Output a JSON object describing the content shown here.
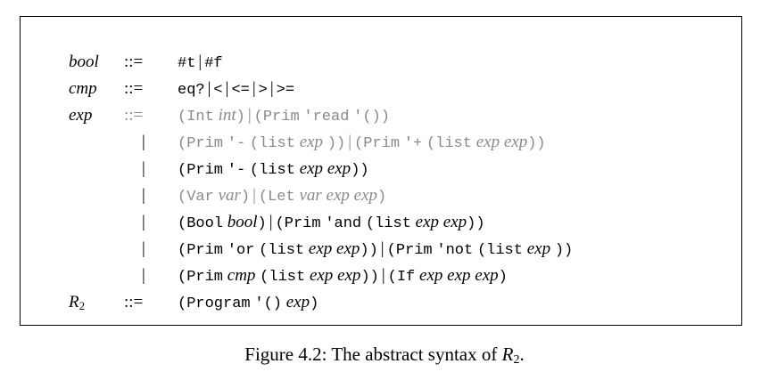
{
  "grammar": {
    "op": "::=",
    "bar": "|",
    "quote": "'",
    "lparen": "(",
    "rparen": ")",
    "bool_nt": "bool",
    "cmp_nt": "cmp",
    "exp_nt": "exp",
    "r2_letter": "R",
    "r2_sub": "2",
    "bool_true": "#t",
    "bool_false": "#f",
    "cmp_eq": "eq?",
    "cmp_lt": "<",
    "cmp_le": "<=",
    "cmp_gt": ">",
    "cmp_ge": ">=",
    "kw_int": "Int",
    "kw_prim": "Prim",
    "kw_list": "list",
    "kw_var": "Var",
    "kw_let": "Let",
    "kw_bool": "Bool",
    "kw_if": "If",
    "kw_program": "Program",
    "sym_read": "read",
    "sym_minus": "-",
    "sym_plus": "+",
    "sym_and": "and",
    "sym_or": "or",
    "sym_not": "not",
    "empty_list": "'()",
    "meta_int": "int",
    "meta_var": "var",
    "meta_exp": "exp",
    "meta_bool": "bool",
    "meta_cmp": "cmp"
  },
  "caption": {
    "prefix": "Figure 4.2: The abstract syntax of ",
    "sym": "R",
    "sub": "2",
    "suffix": "."
  }
}
